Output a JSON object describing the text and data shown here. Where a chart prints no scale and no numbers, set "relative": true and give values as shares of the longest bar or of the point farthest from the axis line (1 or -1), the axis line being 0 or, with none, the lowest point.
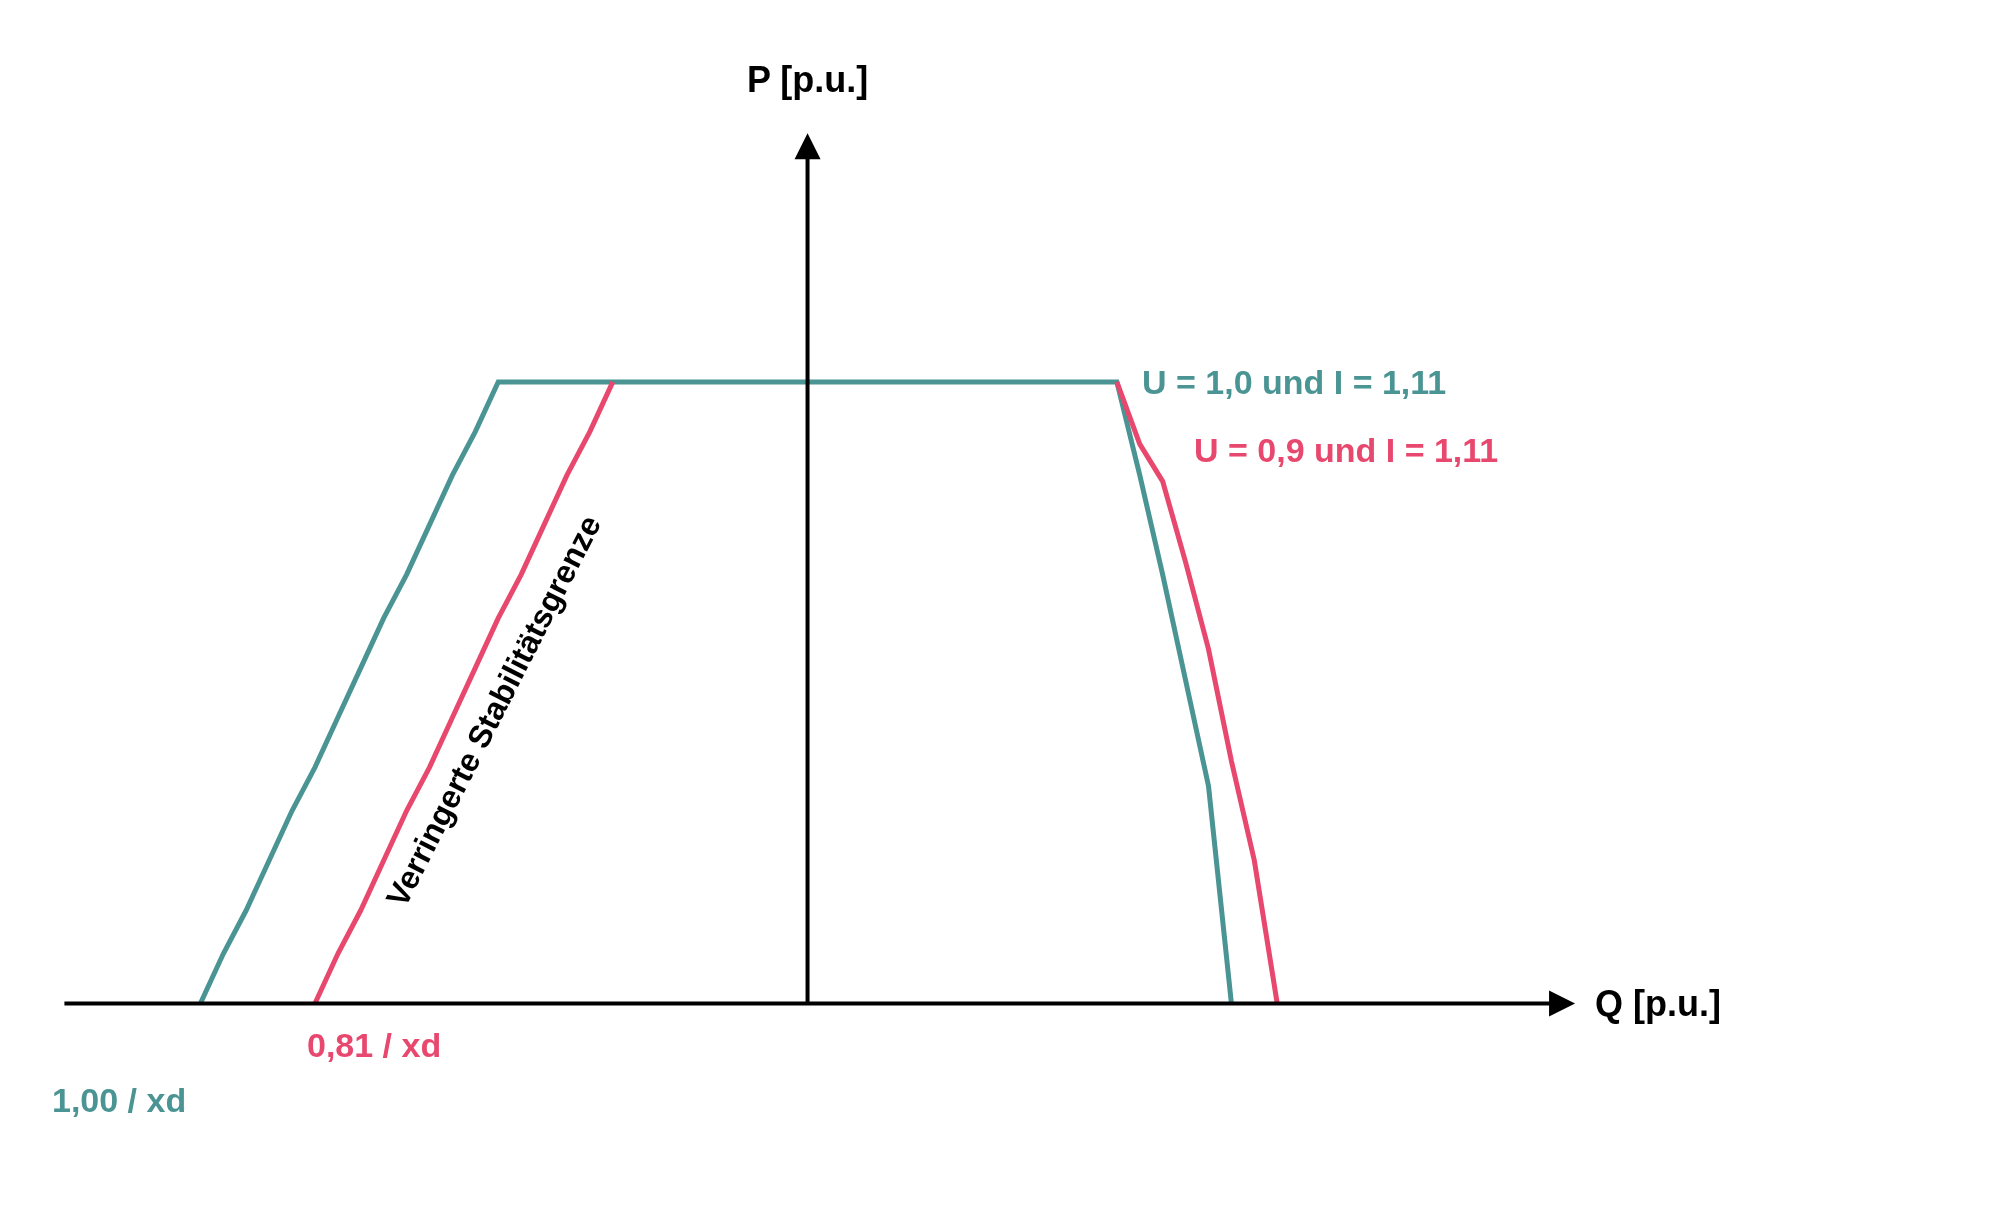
{
  "chart_data": {
    "type": "line",
    "relative": true,
    "legend": false,
    "categories": [
      null,
      null,
      null,
      null,
      null,
      null,
      null,
      null,
      null,
      null,
      null,
      null,
      null,
      null,
      null,
      null,
      null,
      null,
      null,
      null,
      null,
      null,
      null,
      null,
      null,
      null,
      null,
      null,
      null,
      null,
      null,
      null,
      null,
      null,
      null,
      null,
      null,
      null,
      null,
      null,
      null,
      null,
      null,
      null,
      null,
      null,
      null,
      null
    ],
    "series": [
      {
        "name": "U = 1,0 und I = 1,11",
        "color": "#4a9494",
        "values": [
          0,
          0.08,
          0.15,
          0.23,
          0.31,
          0.38,
          0.46,
          0.54,
          0.62,
          0.69,
          0.77,
          0.85,
          0.92,
          1,
          1,
          1,
          1,
          1,
          1,
          1,
          1,
          1,
          1,
          1,
          1,
          1,
          1,
          1,
          1,
          1,
          1,
          1,
          1,
          1,
          1,
          1,
          1,
          1,
          1,
          1,
          1,
          0.85,
          0.69,
          0.52,
          0.35,
          0,
          null,
          null
        ]
      },
      {
        "color": "#e8476e",
        "values": [
          null,
          null,
          null,
          null,
          null,
          0,
          0.08,
          0.15,
          0.23,
          0.31,
          0.38,
          0.46,
          0.54,
          0.62,
          0.69,
          0.77,
          0.85,
          0.92,
          1,
          null,
          null,
          null,
          null,
          null,
          null,
          null,
          null,
          null,
          null,
          null,
          null,
          null,
          null,
          null,
          null,
          null,
          null,
          null,
          null,
          null,
          null,
          null,
          null,
          null,
          null,
          null,
          null,
          null
        ]
      },
      {
        "name": "U = 0,9 und I = 1,11",
        "color": "#e8476e",
        "values": [
          null,
          null,
          null,
          null,
          null,
          null,
          null,
          null,
          null,
          null,
          null,
          null,
          null,
          null,
          null,
          null,
          null,
          null,
          null,
          null,
          null,
          null,
          null,
          null,
          null,
          null,
          null,
          null,
          null,
          null,
          null,
          null,
          null,
          null,
          null,
          null,
          null,
          null,
          null,
          null,
          1,
          0.9,
          0.84,
          0.71,
          0.57,
          0.39,
          0.23,
          0
        ]
      }
    ],
    "annotations": [
      "0,81 / xd",
      "1,00 / xd",
      "Verringerte Stabilitätsgrenze",
      "Q [p.u.]",
      "P [p.u.]"
    ]
  }
}
